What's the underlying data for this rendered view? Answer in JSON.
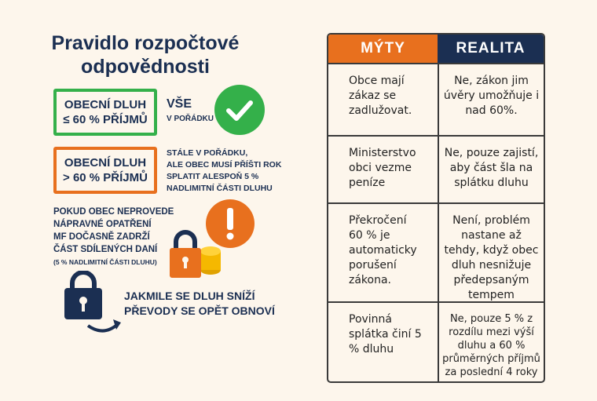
{
  "title": "Pravidlo rozpočtové odpovědnosti",
  "rule_ok": {
    "box_line1": "OBECNÍ DLUH",
    "box_line2": "≤ 60 % PŘÍJMŮ",
    "status_big": "VŠE",
    "status_small": "V POŘÁDKU",
    "icon": "check-circle-icon"
  },
  "rule_over": {
    "box_line1": "OBECNÍ DLUH",
    "box_line2": "> 60 % PŘÍJMŮ",
    "lines": [
      "STÁLE V POŘÁDKU,",
      "ALE OBEC MUSÍ PŘÍŠTI ROK",
      "SPLATIT ALESPOŇ 5 %",
      "NADLIMITNÍ ČÁSTI DLUHU"
    ]
  },
  "sanction": {
    "lines": [
      "POKUD OBEC NEPROVEDE",
      "NÁPRAVNÉ OPATŘENÍ",
      "MF DOČASNĚ ZADRŽÍ",
      "ČÁST SDÍLENÝCH DANÍ"
    ],
    "note": "(5 % NADLIMITNÍ ČÁSTI DLUHU)",
    "icons": [
      "exclamation-circle-icon",
      "padlock-icon",
      "coins-icon"
    ]
  },
  "restore": {
    "lines": [
      "JAKMILE SE DLUH SNÍŽÍ",
      "PŘEVODY SE OPĚT OBNOVÍ"
    ],
    "icon": "padlock-arrow-icon"
  },
  "colors": {
    "navy": "#1b2f52",
    "green": "#34b04a",
    "orange": "#e8701e",
    "yellow": "#f5b800",
    "background": "#fdf6ec"
  },
  "table": {
    "headers": [
      "MÝTY",
      "REALITA"
    ],
    "rows": [
      {
        "myth": "Obce mají zákaz se zadlužovat.",
        "reality": "Ne, zákon jim úvěry umožňuje i nad 60%."
      },
      {
        "myth": "Ministerstvo obci vezme peníze",
        "reality": "Ne, pouze zajistí, aby část šla na splátku dluhu"
      },
      {
        "myth": "Překročení 60 % je automaticky porušení zákona.",
        "reality": "Není, problém nastane až tehdy, když obec dluh nesnižuje předepsaným tempem"
      },
      {
        "myth": "Povinná splátka činí 5 % dluhu",
        "reality": "Ne, pouze 5 % z rozdílu mezi výší dluhu a 60 % průměrných příjmů za poslední 4 roky"
      }
    ]
  }
}
